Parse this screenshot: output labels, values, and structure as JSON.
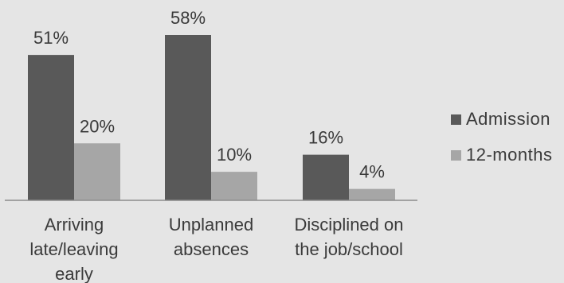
{
  "colors": {
    "background": "#e5e5e5",
    "admission": "#595959",
    "twelve_months": "#a6a6a6",
    "axis": "#8c8c8c",
    "text": "#3a3a3a"
  },
  "chart_data": {
    "type": "bar",
    "title": "",
    "xlabel": "",
    "ylabel": "",
    "categories": [
      [
        "Arriving",
        "late/leaving",
        "early"
      ],
      [
        "Unplanned",
        "absences"
      ],
      [
        "Disciplined on",
        "the job/school"
      ]
    ],
    "series": [
      {
        "name": "Admission",
        "values": [
          51,
          58,
          16
        ],
        "labels": [
          "51%",
          "58%",
          "16%"
        ]
      },
      {
        "name": "12-months",
        "values": [
          20,
          10,
          4
        ],
        "labels": [
          "20%",
          "10%",
          "4%"
        ]
      }
    ],
    "ylim": [
      0,
      58
    ],
    "grid": false,
    "legend": "right"
  }
}
